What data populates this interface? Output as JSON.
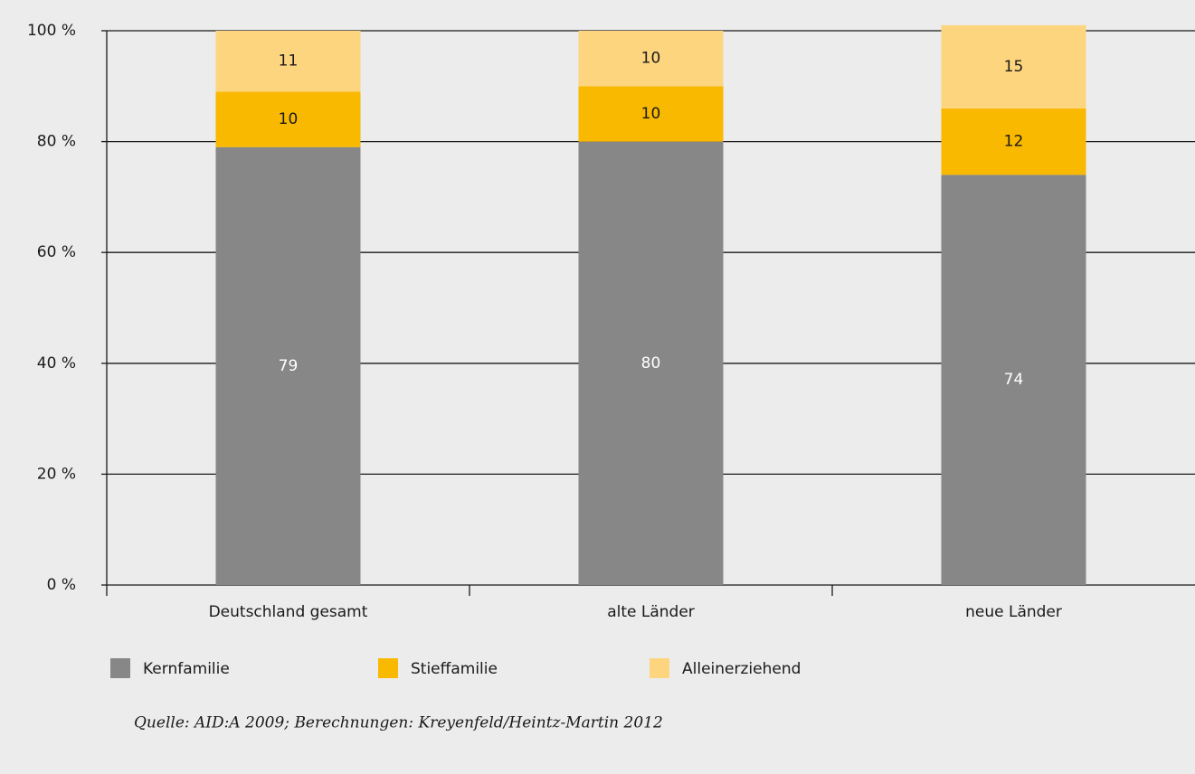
{
  "chart_data": {
    "type": "stacked-bar",
    "categories": [
      "Deutschland gesamt",
      "alte Länder",
      "neue Länder"
    ],
    "series": [
      {
        "name": "Kernfamilie",
        "color": "#878787",
        "values": [
          79,
          80,
          74
        ]
      },
      {
        "name": "Stieffamilie",
        "color": "#f9b900",
        "values": [
          10,
          10,
          12
        ]
      },
      {
        "name": "Alleinerziehend",
        "color": "#fdd57e",
        "values": [
          11,
          10,
          15
        ]
      }
    ],
    "ylim": [
      0,
      100
    ],
    "yticks": [
      {
        "value": 0,
        "label": "0 %"
      },
      {
        "value": 20,
        "label": "20 %"
      },
      {
        "value": 40,
        "label": "40 %"
      },
      {
        "value": 60,
        "label": "60 %"
      },
      {
        "value": 80,
        "label": "80 %"
      },
      {
        "value": 100,
        "label": "100 %"
      }
    ],
    "grid": true,
    "legend": "bottom",
    "source": "Quelle: AID:A 2009; Berechnungen: Kreyenfeld/Heintz-Martin 2012"
  }
}
